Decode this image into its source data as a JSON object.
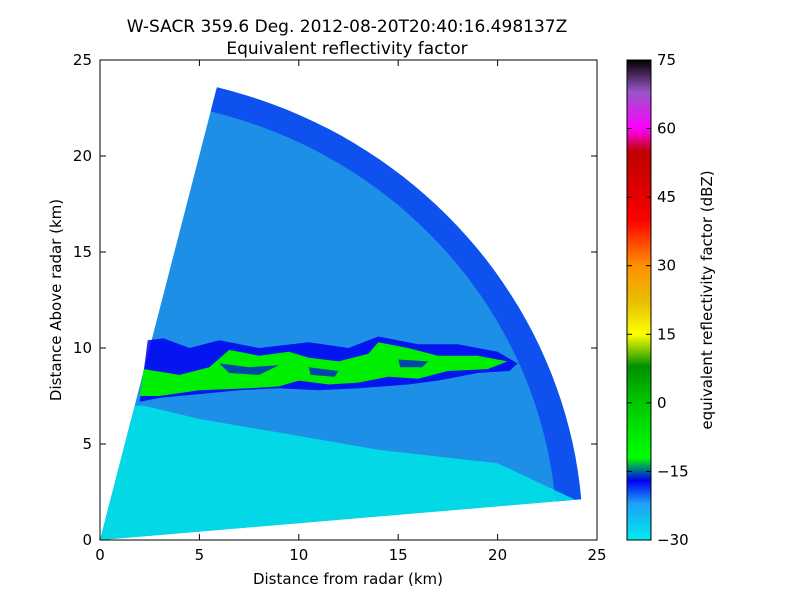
{
  "chart_data": {
    "type": "heatmap",
    "title_line1": "W-SACR 359.6 Deg. 2012-08-20T20:40:16.498137Z",
    "title_line2": "Equivalent reflectivity factor",
    "xlabel": "Distance from radar (km)",
    "ylabel": "Distance Above radar  (km)",
    "xlim": [
      0,
      25
    ],
    "ylim": [
      0,
      25
    ],
    "x_ticks": [
      "0",
      "5",
      "10",
      "15",
      "20",
      "25"
    ],
    "y_ticks": [
      "0",
      "5",
      "10",
      "15",
      "20",
      "25"
    ],
    "grid": false,
    "scan": {
      "range_max_km": 24.3,
      "elevation_min_deg": 5,
      "elevation_max_deg": 76
    },
    "colorbar": {
      "label": "equivalent reflectivity factor (dBZ)",
      "min": -30,
      "max": 75,
      "ticks": [
        "75",
        "60",
        "45",
        "30",
        "15",
        "0",
        "−15",
        "−30"
      ],
      "tick_values": [
        75,
        60,
        45,
        30,
        15,
        0,
        -15,
        -30
      ],
      "colors": [
        {
          "v": -30,
          "c": "#00ecec"
        },
        {
          "v": -22,
          "c": "#1ea0f6"
        },
        {
          "v": -17,
          "c": "#0000f6"
        },
        {
          "v": -12,
          "c": "#00ff00"
        },
        {
          "v": 0,
          "c": "#00c800"
        },
        {
          "v": 8,
          "c": "#009000"
        },
        {
          "v": 15,
          "c": "#ffff00"
        },
        {
          "v": 22,
          "c": "#e7c000"
        },
        {
          "v": 30,
          "c": "#ff9000"
        },
        {
          "v": 40,
          "c": "#ff0000"
        },
        {
          "v": 48,
          "c": "#d60000"
        },
        {
          "v": 55,
          "c": "#c00000"
        },
        {
          "v": 60,
          "c": "#ff00ff"
        },
        {
          "v": 68,
          "c": "#9955c9"
        },
        {
          "v": 75,
          "c": "#000000"
        }
      ]
    },
    "field_colors": {
      "near_clear": "#00e0e6",
      "background": "#1e8fe6",
      "edge": "#0a3cf0",
      "cloud_edge": "#0000f0",
      "cloud_core": "#00ee00"
    },
    "cloud_layer": {
      "x_range_km": [
        2,
        21
      ],
      "base_km": [
        7.3,
        8.9
      ],
      "top_km": [
        9.8,
        10.3
      ]
    }
  }
}
